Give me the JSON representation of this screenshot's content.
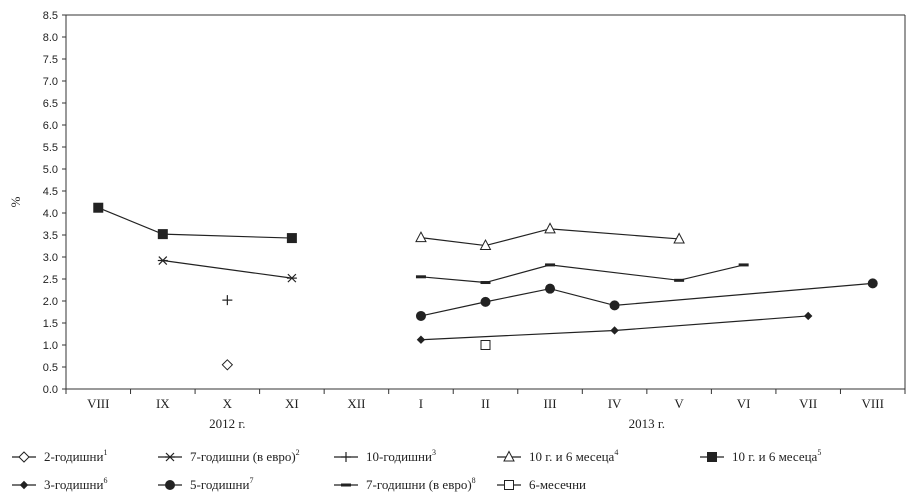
{
  "chart_data": {
    "type": "line",
    "ylabel": "%",
    "ylim": [
      0,
      8.5
    ],
    "ytick_step": 0.5,
    "ytick_labels": [
      "0.0",
      "0.5",
      "1.0",
      "1.5",
      "2.0",
      "2.5",
      "3.0",
      "3.5",
      "4.0",
      "4.5",
      "5.0",
      "5.5",
      "6.0",
      "6.5",
      "7.0",
      "7.5",
      "8.0",
      "8.5"
    ],
    "categories": [
      "VIII",
      "IX",
      "X",
      "XI",
      "XII",
      "I",
      "II",
      "III",
      "IV",
      "V",
      "VI",
      "VII",
      "VIII"
    ],
    "year_labels": [
      {
        "label": "2012 г.",
        "from": 0,
        "to": 4
      },
      {
        "label": "2013 г.",
        "from": 5,
        "to": 12
      }
    ],
    "grid": false,
    "legend_position": "bottom",
    "series": [
      {
        "name": "2-годишни",
        "sup": "1",
        "marker": "diamond-open",
        "color": "#222222",
        "points": [
          [
            2,
            0.55
          ]
        ]
      },
      {
        "name": "7-годишни (в евро)",
        "sup": "2",
        "marker": "asterisk",
        "color": "#222222",
        "points": [
          [
            1,
            2.92
          ],
          [
            3,
            2.52
          ]
        ]
      },
      {
        "name": "10-годишни",
        "sup": "3",
        "marker": "plus",
        "color": "#222222",
        "points": [
          [
            2,
            2.02
          ]
        ]
      },
      {
        "name": "10 г. и 6 месеца",
        "sup": "4",
        "marker": "triangle-open",
        "color": "#222222",
        "points": [
          [
            5,
            3.44
          ],
          [
            6,
            3.26
          ],
          [
            7,
            3.64
          ],
          [
            9,
            3.41
          ]
        ]
      },
      {
        "name": "10 г. и 6 месеца",
        "sup": "5",
        "marker": "square-filled",
        "color": "#222222",
        "points": [
          [
            0,
            4.12
          ],
          [
            1,
            3.52
          ],
          [
            3,
            3.43
          ]
        ]
      },
      {
        "name": "3-годишни",
        "sup": "6",
        "marker": "diamond-filled",
        "color": "#222222",
        "points": [
          [
            5,
            1.12
          ],
          [
            8,
            1.33
          ],
          [
            11,
            1.66
          ]
        ]
      },
      {
        "name": "5-годишни",
        "sup": "7",
        "marker": "circle-filled",
        "color": "#222222",
        "points": [
          [
            5,
            1.66
          ],
          [
            6,
            1.98
          ],
          [
            7,
            2.28
          ],
          [
            8,
            1.9
          ],
          [
            12,
            2.4
          ]
        ]
      },
      {
        "name": "7-годишни (в евро)",
        "sup": "8",
        "marker": "dash",
        "color": "#222222",
        "points": [
          [
            5,
            2.55
          ],
          [
            6,
            2.42
          ],
          [
            7,
            2.82
          ],
          [
            9,
            2.47
          ],
          [
            10,
            2.82
          ]
        ]
      },
      {
        "name": "6-месечни",
        "sup": "",
        "marker": "square-open",
        "color": "#222222",
        "points": [
          [
            6,
            1.0
          ]
        ]
      }
    ]
  }
}
